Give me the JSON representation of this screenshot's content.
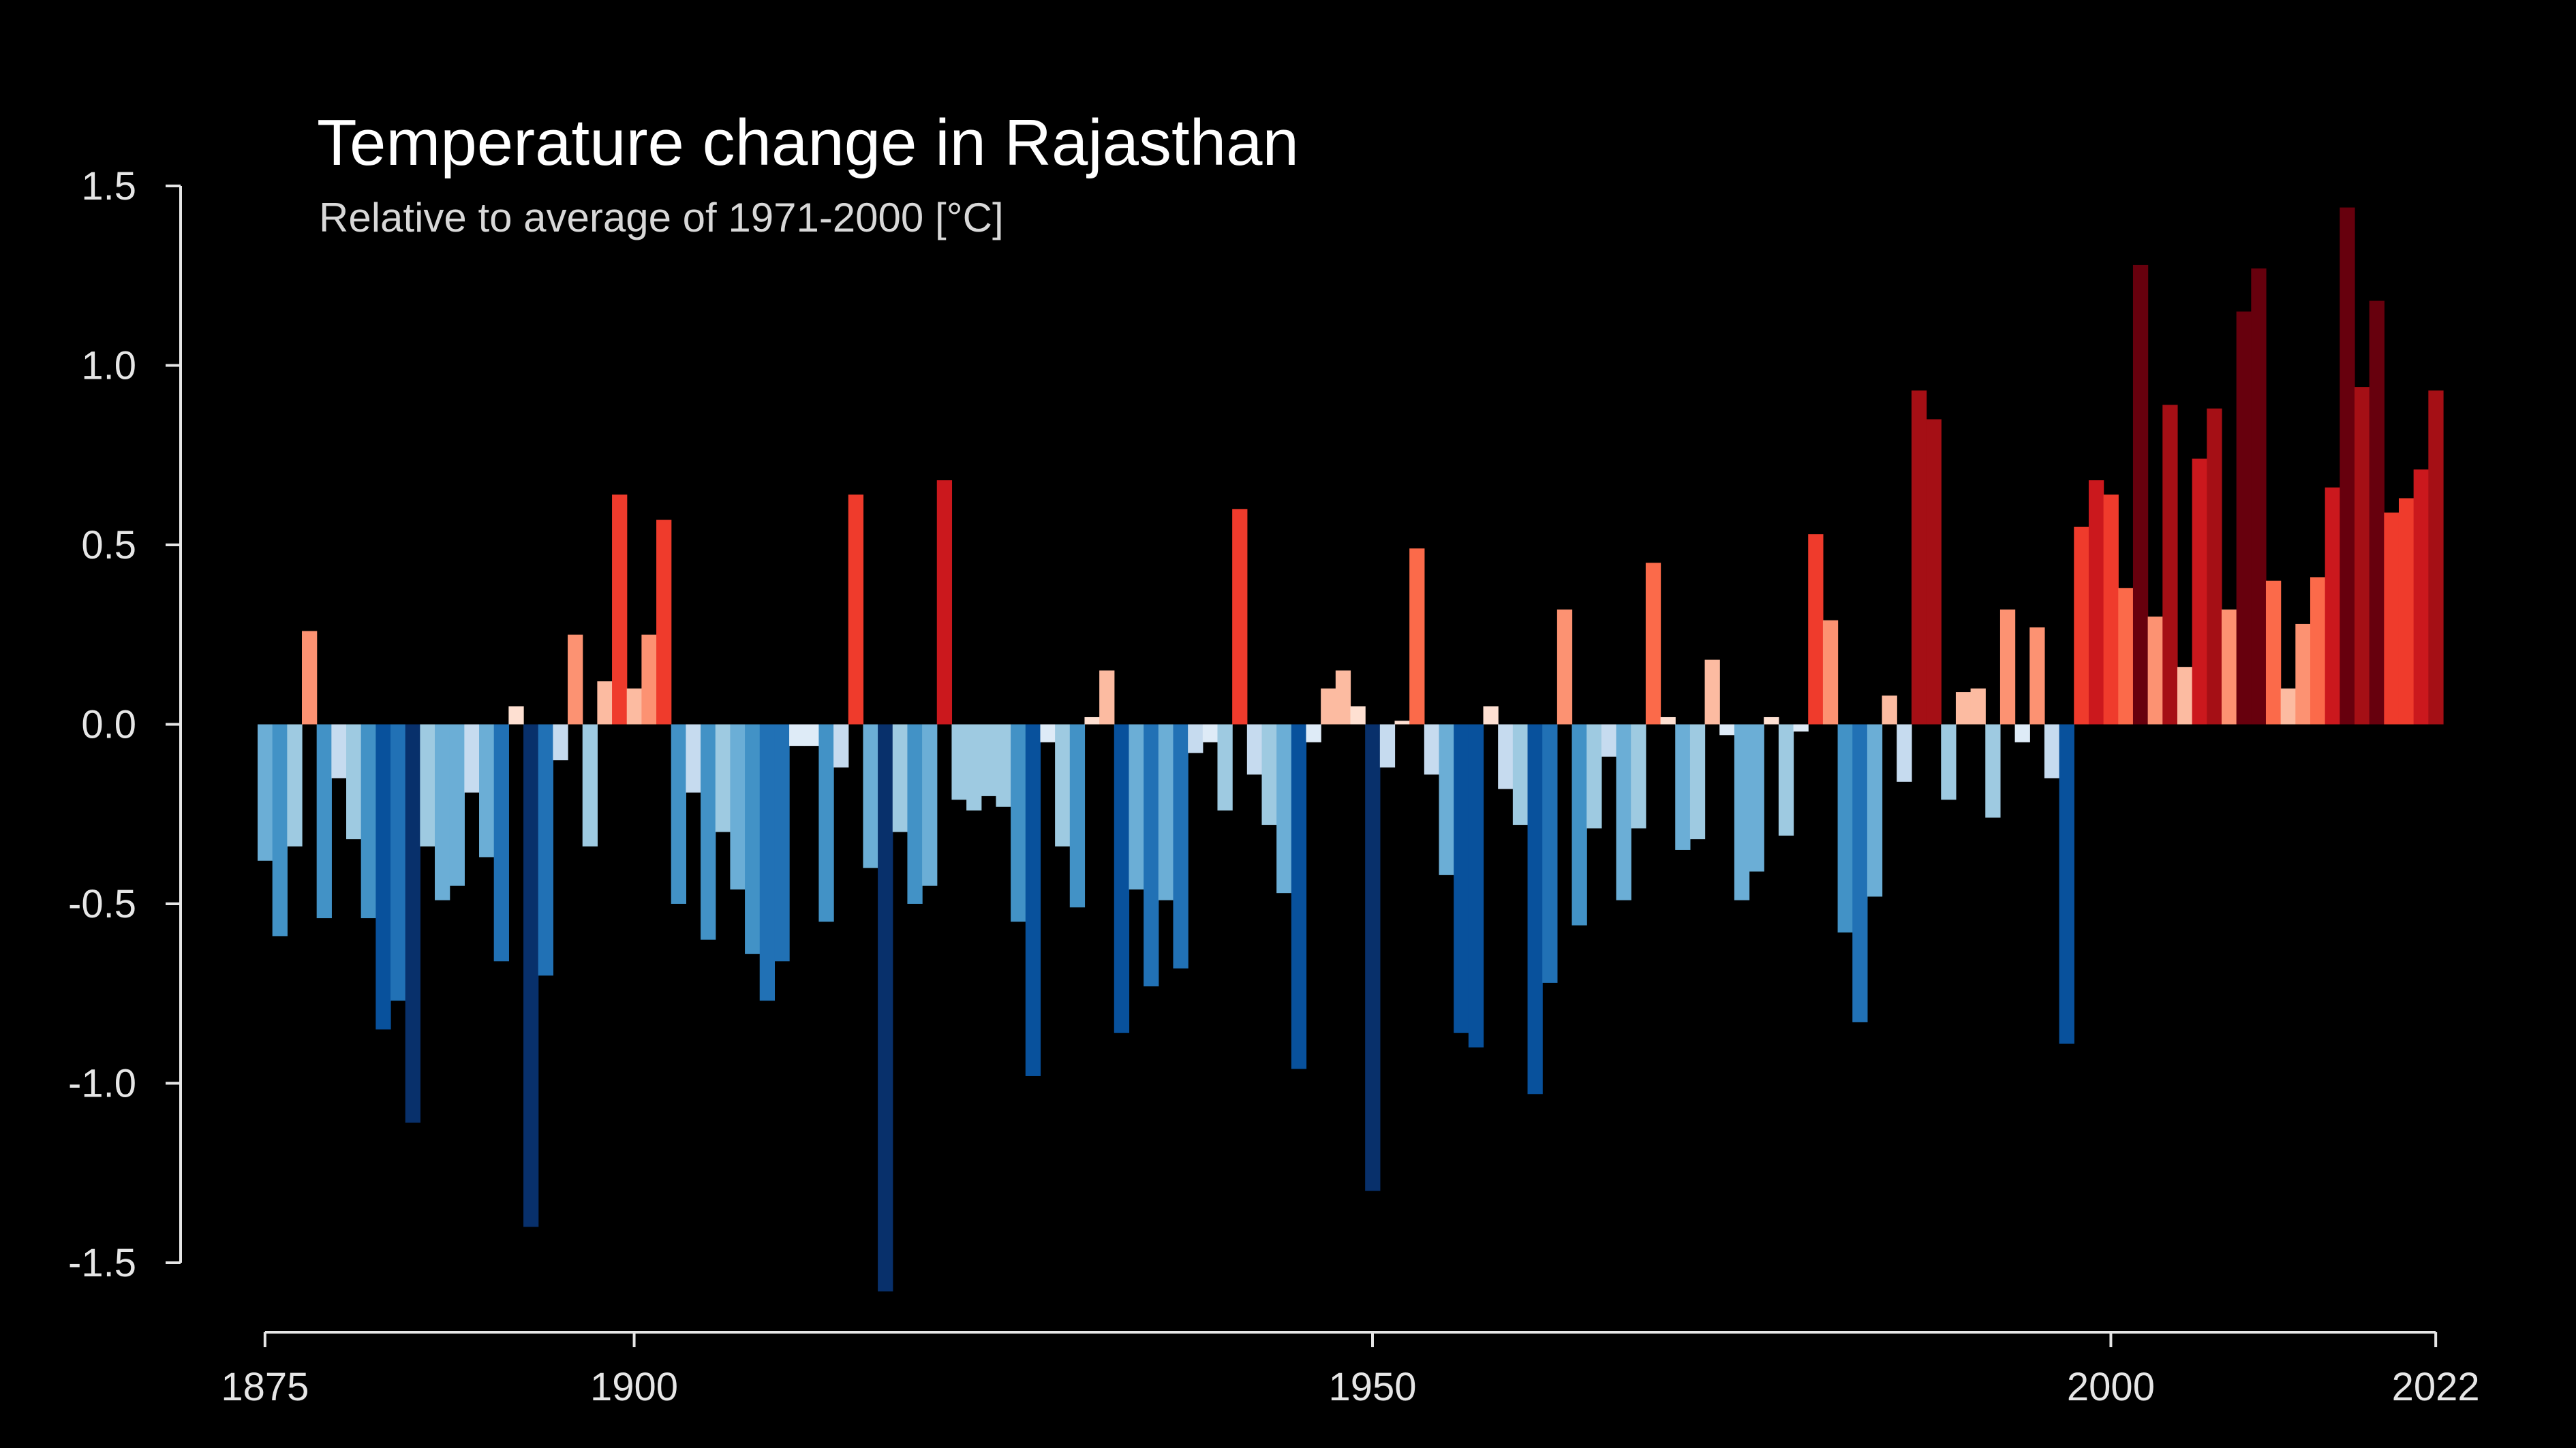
{
  "chart_data": {
    "type": "bar",
    "title": "Temperature change in Rajasthan",
    "subtitle": "Relative to average of 1971-2000  [°C]",
    "xlabel": "",
    "ylabel": "",
    "ylim": [
      -1.5,
      1.5
    ],
    "xlim": [
      1875,
      2022
    ],
    "x_ticks": [
      "1875",
      "1900",
      "1950",
      "2000",
      "2022"
    ],
    "y_ticks": [
      "1.5",
      "1.0",
      "0.5",
      "0.0",
      "-0.5",
      "-1.0",
      "-1.5"
    ],
    "x_tick_values": [
      1875,
      1900,
      1950,
      2000,
      2022
    ],
    "y_tick_values": [
      1.5,
      1.0,
      0.5,
      0.0,
      -0.5,
      -1.0,
      -1.5
    ],
    "grid": false,
    "legend": "none",
    "colors": {
      "background": "#000000",
      "axis": "#e6e6e6",
      "warm_scale": [
        "#fee0d2",
        "#fcbba1",
        "#fc9272",
        "#fb6a4a",
        "#ef3b2c",
        "#cb181d",
        "#a50f15",
        "#67000d"
      ],
      "cool_scale": [
        "#deebf7",
        "#c6dbef",
        "#9ecae1",
        "#6baed6",
        "#4292c6",
        "#2171b5",
        "#08519c",
        "#08306b"
      ]
    },
    "start_year": 1875,
    "values": [
      -0.38,
      -0.59,
      -0.34,
      0.26,
      -0.54,
      -0.15,
      -0.32,
      -0.54,
      -0.85,
      -0.77,
      -1.11,
      -0.34,
      -0.49,
      -0.45,
      -0.19,
      -0.37,
      -0.66,
      0.05,
      -1.4,
      -0.7,
      -0.1,
      0.25,
      -0.34,
      0.12,
      0.64,
      0.1,
      0.25,
      0.57,
      -0.5,
      -0.19,
      -0.6,
      -0.3,
      -0.46,
      -0.64,
      -0.77,
      -0.66,
      -0.06,
      -0.06,
      -0.55,
      -0.12,
      0.64,
      -0.4,
      -1.58,
      -0.3,
      -0.5,
      -0.45,
      0.68,
      -0.21,
      -0.24,
      -0.2,
      -0.23,
      -0.55,
      -0.98,
      -0.05,
      -0.34,
      -0.51,
      0.02,
      0.15,
      -0.86,
      -0.46,
      -0.73,
      -0.49,
      -0.68,
      -0.08,
      -0.05,
      -0.24,
      0.6,
      -0.14,
      -0.28,
      -0.47,
      -0.96,
      -0.05,
      0.1,
      0.15,
      0.05,
      -1.3,
      -0.12,
      0.01,
      0.49,
      -0.14,
      -0.42,
      -0.86,
      -0.9,
      0.05,
      -0.18,
      -0.28,
      -1.03,
      -0.72,
      0.32,
      -0.56,
      -0.29,
      -0.09,
      -0.49,
      -0.29,
      0.45,
      0.02,
      -0.35,
      -0.32,
      0.18,
      -0.03,
      -0.49,
      -0.41,
      0.02,
      -0.31,
      -0.02,
      0.53,
      0.29,
      -0.58,
      -0.83,
      -0.48,
      0.08,
      -0.16,
      0.93,
      0.85,
      -0.21,
      0.09,
      0.1,
      -0.26,
      0.32,
      -0.05,
      0.27,
      -0.15,
      -0.89,
      0.55,
      0.68,
      0.64,
      0.38,
      1.28,
      0.3,
      0.89,
      0.16,
      0.74,
      0.88,
      0.32,
      1.15,
      1.27,
      0.4,
      0.1,
      0.28,
      0.41,
      0.66,
      1.44,
      0.94,
      1.18,
      0.59,
      0.63,
      0.71,
      0.93
    ]
  }
}
